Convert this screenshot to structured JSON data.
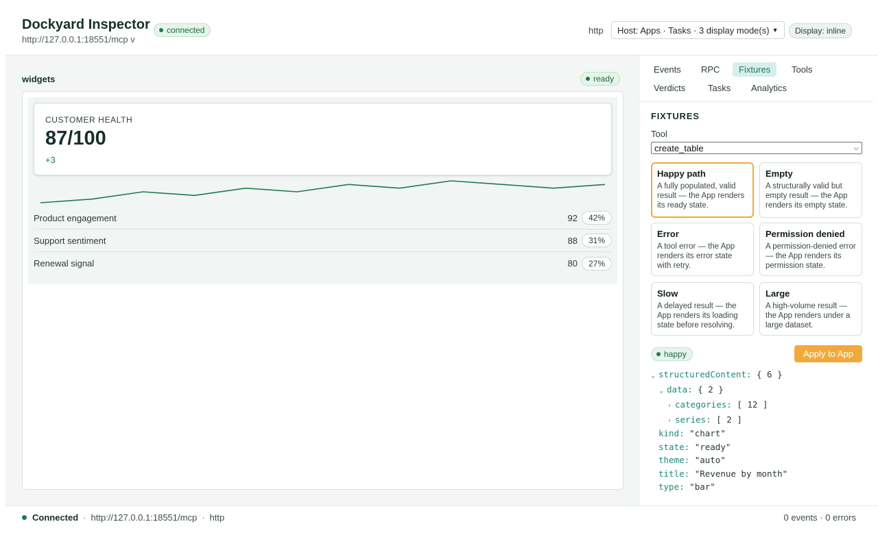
{
  "header": {
    "title": "Dockyard Inspector",
    "url": "http://127.0.0.1:18551/mcp v",
    "status": "connected",
    "transport": "http",
    "host_select": "Host: Apps · Tasks · 3 display mode(s)",
    "display": "Display: inline"
  },
  "main": {
    "section_label": "widgets",
    "status": "ready",
    "metric": {
      "label": "CUSTOMER HEALTH",
      "value": "87/100",
      "delta": "+3",
      "trend": [
        82,
        83,
        85,
        84,
        86,
        85,
        87,
        86,
        88,
        87,
        86,
        87
      ]
    },
    "rows": [
      {
        "name": "Product engagement",
        "value": "92",
        "pct": "42%"
      },
      {
        "name": "Support sentiment",
        "value": "88",
        "pct": "31%"
      },
      {
        "name": "Renewal signal",
        "value": "80",
        "pct": "27%"
      }
    ]
  },
  "panel": {
    "tabs": [
      "Events",
      "RPC",
      "Fixtures",
      "Tools",
      "Verdicts",
      "Tasks",
      "Analytics"
    ],
    "active_tab": "Fixtures",
    "heading": "FIXTURES",
    "tool_label": "Tool",
    "tool_value": "create_table",
    "fixtures": [
      {
        "title": "Happy path",
        "desc": "A fully populated, valid result — the App renders its ready state.",
        "selected": true
      },
      {
        "title": "Empty",
        "desc": "A structurally valid but empty result — the App renders its empty state."
      },
      {
        "title": "Error",
        "desc": "A tool error — the App renders its error state with retry."
      },
      {
        "title": "Permission denied",
        "desc": "A permission-denied error — the App renders its permission state."
      },
      {
        "title": "Slow",
        "desc": "A delayed result — the App renders its loading state before resolving."
      },
      {
        "title": "Large",
        "desc": "A high-volume result — the App renders under a large dataset."
      }
    ],
    "selected_fixture": "happy",
    "apply_label": "Apply to App",
    "tree": {
      "structured_key": "structuredContent:",
      "structured_val": "{ 6 }",
      "data_key": "data:",
      "data_val": "{ 2 }",
      "categories_key": "categories:",
      "categories_val": "[ 12 ]",
      "series_key": "series:",
      "series_val": "[ 2 ]",
      "kind_key": "kind:",
      "kind_val": "\"chart\"",
      "state_key": "state:",
      "state_val": "\"ready\"",
      "theme_key": "theme:",
      "theme_val": "\"auto\"",
      "title_key": "title:",
      "title_val": "\"Revenue by month\"",
      "type_key": "type:",
      "type_val": "\"bar\""
    }
  },
  "footer": {
    "status": "Connected",
    "url": "http://127.0.0.1:18551/mcp",
    "transport": "http",
    "counts": "0 events · 0 errors",
    "sep": "·"
  },
  "colors": {
    "accent": "#1c7a6a",
    "success": "#1f7a4a",
    "apply": "#f2a93b",
    "selected_border": "#f0a93a"
  }
}
